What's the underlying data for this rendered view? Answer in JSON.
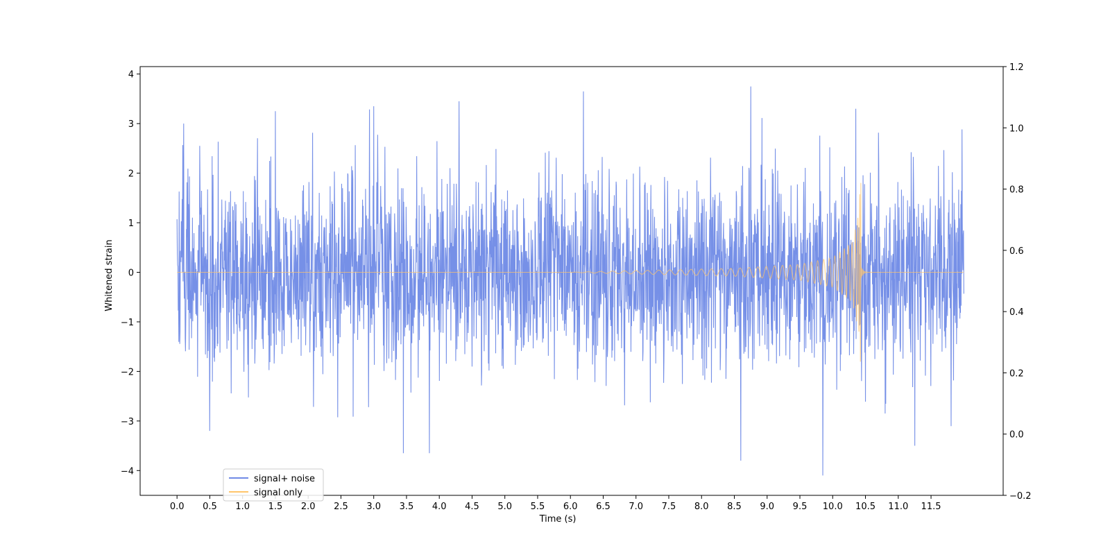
{
  "chart_data": {
    "type": "line",
    "title": "",
    "xlabel": "Time (s)",
    "ylabel": "Whitened strain",
    "xlim": [
      -0.5625,
      12.6
    ],
    "ylim": [
      -4.5,
      4.15
    ],
    "y2lim": [
      -0.2,
      1.2
    ],
    "x_ticks": [
      "0.0",
      "0.5",
      "1.0",
      "1.5",
      "2.0",
      "2.5",
      "3.0",
      "3.5",
      "4.0",
      "4.5",
      "5.0",
      "5.5",
      "6.0",
      "6.5",
      "7.0",
      "7.5",
      "8.0",
      "8.5",
      "9.0",
      "9.5",
      "10.0",
      "10.5",
      "11.0",
      "11.5"
    ],
    "y_ticks": [
      "4",
      "3",
      "2",
      "1",
      "0",
      "−1",
      "−2",
      "−3",
      "−4"
    ],
    "y2_ticks": [
      "1.2",
      "1.0",
      "0.8",
      "0.6",
      "0.4",
      "0.2",
      "0.0",
      "−0.2"
    ],
    "grid": false,
    "legend_position": "lower-left",
    "series": [
      {
        "name": "signal+ noise",
        "color": "#6f8ae6",
        "kind": "whitened noise",
        "x_range": [
          0.0,
          12.0
        ],
        "envelope": {
          "upper_typical": 2.4,
          "lower_typical": -2.4,
          "max": 3.75,
          "min": -4.1
        },
        "peaks": [
          {
            "x": 0.1,
            "y": 3.0
          },
          {
            "x": 1.5,
            "y": 3.25
          },
          {
            "x": 3.0,
            "y": 3.35
          },
          {
            "x": 4.3,
            "y": 3.45
          },
          {
            "x": 6.2,
            "y": 3.65
          },
          {
            "x": 8.75,
            "y": 3.75
          },
          {
            "x": 10.35,
            "y": 3.3
          },
          {
            "x": 0.5,
            "y": -3.2
          },
          {
            "x": 3.45,
            "y": -3.65
          },
          {
            "x": 3.85,
            "y": -3.65
          },
          {
            "x": 8.6,
            "y": -3.8
          },
          {
            "x": 9.85,
            "y": -4.1
          },
          {
            "x": 11.25,
            "y": -3.5
          }
        ]
      },
      {
        "name": "signal only",
        "color": "#ffc56a",
        "kind": "chirp",
        "x_range": [
          0.0,
          12.0
        ],
        "merger_time": 10.43,
        "peak_amplitude": 2.05,
        "envelope_points": [
          [
            6.0,
            0.0
          ],
          [
            6.5,
            0.02
          ],
          [
            7.5,
            0.05
          ],
          [
            8.5,
            0.08
          ],
          [
            9.5,
            0.16
          ],
          [
            10.0,
            0.3
          ],
          [
            10.3,
            0.6
          ],
          [
            10.4,
            1.2
          ],
          [
            10.43,
            2.05
          ]
        ]
      }
    ]
  }
}
